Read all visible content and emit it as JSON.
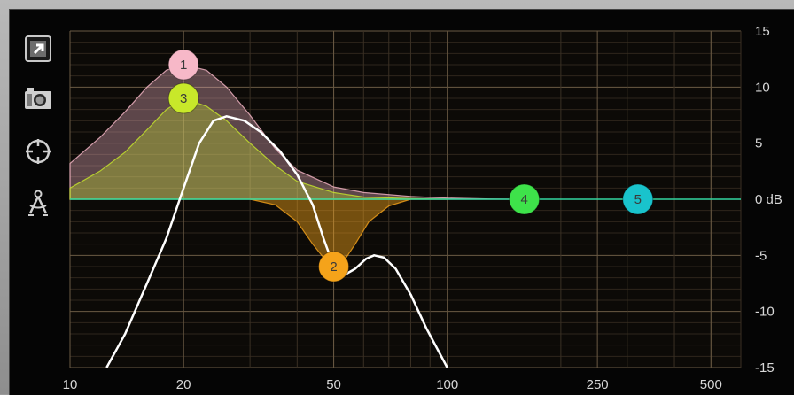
{
  "toolbar": {
    "items": [
      {
        "icon": "expand-icon"
      },
      {
        "icon": "camera-icon"
      },
      {
        "icon": "target-icon"
      },
      {
        "icon": "compass-icon"
      }
    ]
  },
  "chart_data": {
    "type": "line",
    "xscale": "log",
    "xlim": [
      10,
      600
    ],
    "ylim": [
      -15,
      15
    ],
    "x_ticks": [
      10,
      20,
      50,
      100,
      250,
      500
    ],
    "x_tick_labels": [
      "10",
      "20",
      "50",
      "100",
      "250",
      "500"
    ],
    "y_ticks": [
      15,
      10,
      5,
      0,
      -5,
      -10,
      -15
    ],
    "y_tick_labels": [
      "15",
      "10",
      "5",
      "0 dB",
      "-5",
      "-10",
      "-15"
    ],
    "grid": true,
    "colors": {
      "band1": "#f7b8c8",
      "band2": "#f5a31a",
      "band3": "#c8e82a",
      "band4": "#3ee24a",
      "band5": "#19c3cc",
      "zero_line": "#33d6a0",
      "response": "#ffffff",
      "grid": "#5a4a35"
    },
    "bands": [
      {
        "label": "1",
        "freq": 20,
        "gain": 12
      },
      {
        "label": "2",
        "freq": 50,
        "gain": -6
      },
      {
        "label": "3",
        "freq": 20,
        "gain": 9
      },
      {
        "label": "4",
        "freq": 160,
        "gain": 0
      },
      {
        "label": "5",
        "freq": 320,
        "gain": 0
      }
    ],
    "band_curves": [
      {
        "band": "1",
        "points": [
          [
            10,
            3.2
          ],
          [
            12,
            5.5
          ],
          [
            14,
            7.8
          ],
          [
            16,
            10
          ],
          [
            18,
            11.5
          ],
          [
            20,
            12
          ],
          [
            23,
            11.5
          ],
          [
            26,
            10
          ],
          [
            30,
            7.5
          ],
          [
            35,
            4.5
          ],
          [
            40,
            2.6
          ],
          [
            50,
            1.1
          ],
          [
            60,
            0.6
          ],
          [
            80,
            0.25
          ],
          [
            100,
            0.1
          ],
          [
            130,
            0.02
          ],
          [
            150,
            0
          ]
        ]
      },
      {
        "band": "3",
        "points": [
          [
            10,
            1
          ],
          [
            12,
            2.5
          ],
          [
            14,
            4.2
          ],
          [
            16,
            6.2
          ],
          [
            18,
            8
          ],
          [
            20,
            9
          ],
          [
            23,
            8.3
          ],
          [
            26,
            7
          ],
          [
            30,
            5
          ],
          [
            35,
            3
          ],
          [
            40,
            1.6
          ],
          [
            50,
            0.6
          ],
          [
            60,
            0.2
          ],
          [
            80,
            0.05
          ],
          [
            100,
            0
          ]
        ]
      },
      {
        "band": "2",
        "points": [
          [
            30,
            0
          ],
          [
            35,
            -0.5
          ],
          [
            40,
            -2
          ],
          [
            44,
            -4
          ],
          [
            48,
            -5.6
          ],
          [
            50,
            -6
          ],
          [
            53,
            -5.6
          ],
          [
            57,
            -4
          ],
          [
            62,
            -2
          ],
          [
            70,
            -0.6
          ],
          [
            80,
            0
          ]
        ]
      }
    ],
    "response_curve": [
      [
        12.5,
        -15
      ],
      [
        14,
        -12
      ],
      [
        16,
        -7.5
      ],
      [
        18,
        -3.5
      ],
      [
        20,
        1
      ],
      [
        22,
        5
      ],
      [
        24,
        7
      ],
      [
        26,
        7.4
      ],
      [
        29,
        7
      ],
      [
        32,
        6
      ],
      [
        36,
        4.3
      ],
      [
        40,
        2.2
      ],
      [
        44,
        -0.5
      ],
      [
        47,
        -3.5
      ],
      [
        50,
        -6
      ],
      [
        53,
        -6.8
      ],
      [
        57,
        -6.2
      ],
      [
        61,
        -5.3
      ],
      [
        64,
        -5
      ],
      [
        68,
        -5.2
      ],
      [
        73,
        -6.2
      ],
      [
        80,
        -8.5
      ],
      [
        88,
        -11.5
      ],
      [
        100,
        -15
      ]
    ]
  }
}
